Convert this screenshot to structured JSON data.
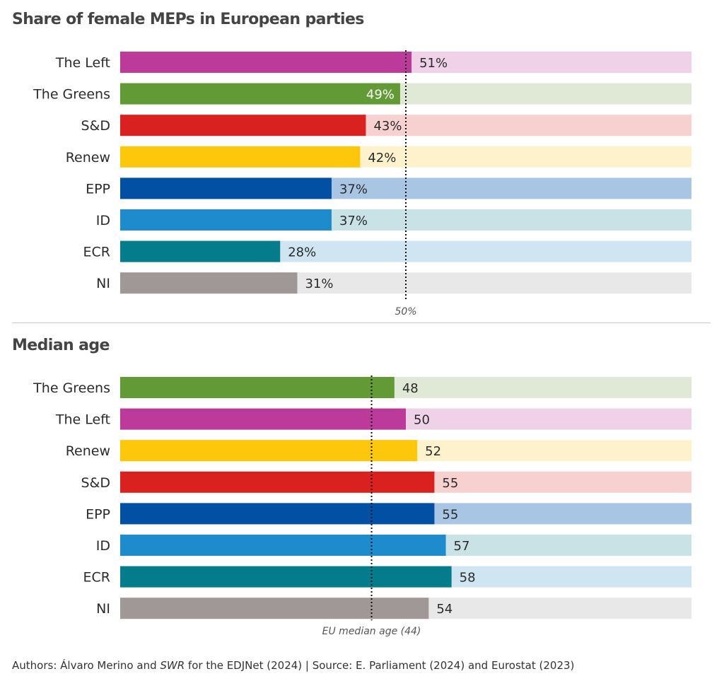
{
  "charts": [
    {
      "title": "Share of female MEPs in European parties",
      "reference_label": "50%"
    },
    {
      "title": "Median age",
      "reference_label": "EU median age (44)"
    }
  ],
  "footer": {
    "authors_prefix": "Authors: Álvaro Merino and ",
    "authors_italic": "SWR",
    "authors_suffix": " for the EDJNet (2024)  | Source: E. Parliament (2024) and Eurostat (2023)"
  },
  "chart_data": [
    {
      "type": "bar",
      "orientation": "horizontal",
      "title": "Share of female MEPs in European parties",
      "categories": [
        "The Left",
        "The Greens",
        "S&D",
        "Renew",
        "EPP",
        "ID",
        "ECR",
        "NI"
      ],
      "values": [
        51,
        49,
        43,
        42,
        37,
        37,
        28,
        31
      ],
      "value_labels": [
        "51%",
        "49%",
        "43%",
        "42%",
        "37%",
        "37%",
        "28%",
        "31%"
      ],
      "xlim": [
        0,
        100
      ],
      "reference_line": {
        "value": 50,
        "label": "50%"
      },
      "colors": [
        "#bb3a9a",
        "#629a36",
        "#d9221f",
        "#fdc70c",
        "#0150a3",
        "#1e8ccc",
        "#047c8b",
        "#a09896"
      ],
      "track_colors": [
        "#efd2e7",
        "#dfe9d6",
        "#f6d1d0",
        "#fef2cc",
        "#a8c6e3",
        "#c8e2e5",
        "#cfe5f1",
        "#e9e8e8"
      ]
    },
    {
      "type": "bar",
      "orientation": "horizontal",
      "title": "Median age",
      "categories": [
        "The Greens",
        "The Left",
        "Renew",
        "S&D",
        "EPP",
        "ID",
        "ECR",
        "NI"
      ],
      "values": [
        48,
        50,
        52,
        55,
        55,
        57,
        58,
        54
      ],
      "value_labels": [
        "48",
        "50",
        "52",
        "55",
        "55",
        "57",
        "58",
        "54"
      ],
      "xlim": [
        0,
        100
      ],
      "reference_line": {
        "value": 44,
        "label": "EU median age (44)"
      },
      "colors": [
        "#629a36",
        "#bb3a9a",
        "#fdc70c",
        "#d9221f",
        "#0150a3",
        "#1e8ccc",
        "#047c8b",
        "#a09896"
      ],
      "track_colors": [
        "#dfe9d6",
        "#efd2e7",
        "#fef2cc",
        "#f6d1d0",
        "#a8c6e3",
        "#c8e2e5",
        "#cfe5f1",
        "#e9e8e8"
      ]
    }
  ]
}
